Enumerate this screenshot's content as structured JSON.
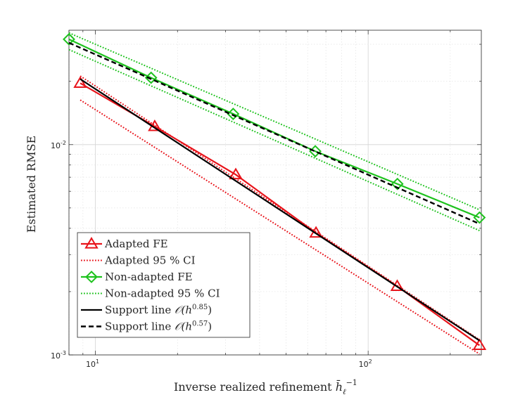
{
  "chart_data": {
    "type": "line",
    "xscale": "log",
    "yscale": "log",
    "xlim": [
      8,
      260
    ],
    "ylim": [
      0.001,
      0.035
    ],
    "xlabel": "Inverse realized refinement",
    "xlabel_math": "h̄",
    "xlabel_sub": "ℓ",
    "xlabel_sup": "−1",
    "ylabel": "Estimated RMSE",
    "grid": true,
    "x_ticks": [
      {
        "value": 10,
        "base": "10",
        "exp": "1"
      },
      {
        "value": 100,
        "base": "10",
        "exp": "2"
      }
    ],
    "y_ticks": [
      {
        "value": 0.001,
        "base": "10",
        "exp": "-3"
      },
      {
        "value": 0.01,
        "base": "10",
        "exp": "-2"
      }
    ],
    "legend_position": "bottom-left",
    "series": [
      {
        "name": "Adapted FE",
        "label": "Adapted FE",
        "color": "#e8141b",
        "style": "solid",
        "marker": "triangle",
        "x": [
          8.8,
          16.5,
          32.7,
          64.4,
          127.8,
          256
        ],
        "y": [
          0.0196,
          0.0122,
          0.0072,
          0.0038,
          0.00212,
          0.00111
        ]
      },
      {
        "name": "Adapted 95 % CI upper",
        "label": "Adapted 95 % CI",
        "color": "#e8141b",
        "style": "dotted",
        "marker": "none",
        "x": [
          8.8,
          256
        ],
        "y": [
          0.0212,
          0.00118
        ]
      },
      {
        "name": "Adapted 95 % CI lower",
        "color": "#e8141b",
        "style": "dotted",
        "marker": "none",
        "in_legend": false,
        "x": [
          8.8,
          256
        ],
        "y": [
          0.0163,
          0.00101
        ]
      },
      {
        "name": "Non-adapted FE",
        "label": "Non-adapted FE",
        "color": "#1ec21e",
        "style": "solid",
        "marker": "diamond",
        "x": [
          8.0,
          16.0,
          32.0,
          64.0,
          128.0,
          256.0
        ],
        "y": [
          0.0317,
          0.0208,
          0.014,
          0.0093,
          0.0065,
          0.0045
        ]
      },
      {
        "name": "Non-adapted 95 % CI upper",
        "label": "Non-adapted 95 % CI",
        "color": "#1ec21e",
        "style": "dotted",
        "marker": "none",
        "x": [
          8.0,
          256.0
        ],
        "y": [
          0.034,
          0.0049
        ]
      },
      {
        "name": "Non-adapted 95 % CI lower",
        "color": "#1ec21e",
        "style": "dotted",
        "marker": "none",
        "in_legend": false,
        "x": [
          8.0,
          256.0
        ],
        "y": [
          0.0283,
          0.0039
        ]
      },
      {
        "name": "Support line O(h^0.85)",
        "label_prefix": "Support line ",
        "label_math": "ᵊ(h",
        "label_exp": "0.85",
        "color": "#000000",
        "style": "solid",
        "marker": "none",
        "x": [
          8.8,
          256
        ],
        "y": [
          0.0205,
          0.00117
        ]
      },
      {
        "name": "Support line O(h^0.57)",
        "label_prefix": "Support line ",
        "label_math": "ᵊ(h",
        "label_exp": "0.57",
        "color": "#000000",
        "style": "dashed",
        "marker": "none",
        "x": [
          8.0,
          256.0
        ],
        "y": [
          0.0305,
          0.0042
        ]
      }
    ]
  }
}
